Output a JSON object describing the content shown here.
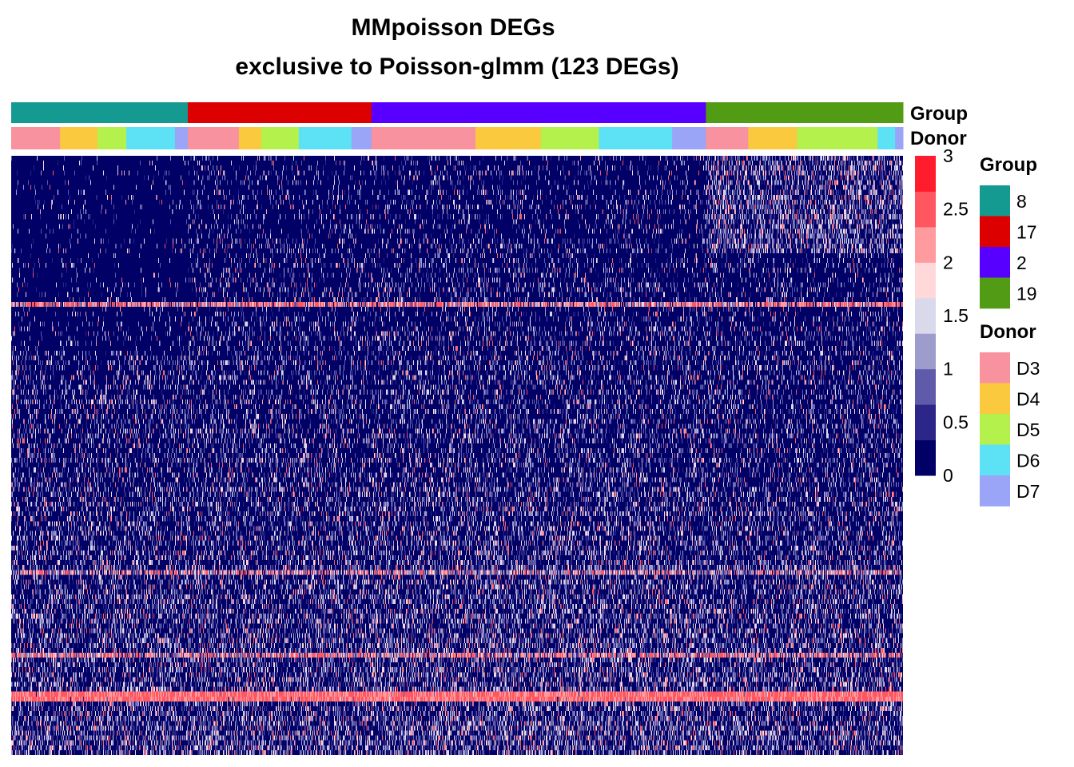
{
  "chart_data": {
    "type": "heatmap",
    "title": "MMpoisson DEGs",
    "subtitle": "exclusive to Poisson-glmm (123 DEGs)",
    "num_genes": 123,
    "annotation_labels": {
      "group": "Group",
      "donor": "Donor"
    },
    "groups": [
      {
        "name": "8",
        "color": "#159A91",
        "fraction": 0.198,
        "donors": [
          {
            "donor": "D3",
            "fraction": 0.277
          },
          {
            "donor": "D4",
            "fraction": 0.212
          },
          {
            "donor": "D5",
            "fraction": 0.163
          },
          {
            "donor": "D6",
            "fraction": 0.275
          },
          {
            "donor": "D7",
            "fraction": 0.073
          }
        ]
      },
      {
        "name": "17",
        "color": "#DD0000",
        "fraction": 0.206,
        "donors": [
          {
            "donor": "D3",
            "fraction": 0.278
          },
          {
            "donor": "D4",
            "fraction": 0.122
          },
          {
            "donor": "D5",
            "fraction": 0.204
          },
          {
            "donor": "D6",
            "fraction": 0.287
          },
          {
            "donor": "D7",
            "fraction": 0.109
          }
        ]
      },
      {
        "name": "2",
        "color": "#5700FF",
        "fraction": 0.375,
        "donors": [
          {
            "donor": "D3",
            "fraction": 0.311
          },
          {
            "donor": "D4",
            "fraction": 0.195
          },
          {
            "donor": "D5",
            "fraction": 0.174
          },
          {
            "donor": "D6",
            "fraction": 0.219
          },
          {
            "donor": "D7",
            "fraction": 0.101
          }
        ]
      },
      {
        "name": "19",
        "color": "#529B14",
        "fraction": 0.221,
        "donors": [
          {
            "donor": "D3",
            "fraction": 0.215
          },
          {
            "donor": "D4",
            "fraction": 0.247
          },
          {
            "donor": "D5",
            "fraction": 0.409
          },
          {
            "donor": "D6",
            "fraction": 0.089
          },
          {
            "donor": "D7",
            "fraction": 0.04
          }
        ]
      }
    ],
    "donor_colors": {
      "D3": "#F7929E",
      "D4": "#FBC93D",
      "D5": "#B5F14D",
      "D6": "#5DE2F5",
      "D7": "#9AA5F7"
    },
    "color_scale": {
      "min": 0,
      "max": 3,
      "ticks": [
        "3",
        "2.5",
        "2",
        "1.5",
        "1",
        "0.5",
        "0"
      ],
      "colors": [
        "#000066",
        "#2B2688",
        "#5F5BAA",
        "#9E9CCD",
        "#DAD9EC",
        "#FFD9D9",
        "#FF9A9E",
        "#FF5660",
        "#FF1C2D"
      ]
    },
    "legends": {
      "group": {
        "title": "Group",
        "items": [
          {
            "label": "8",
            "color": "#159A91"
          },
          {
            "label": "17",
            "color": "#DD0000"
          },
          {
            "label": "2",
            "color": "#5700FF"
          },
          {
            "label": "19",
            "color": "#529B14"
          }
        ]
      },
      "donor": {
        "title": "Donor",
        "items": [
          {
            "label": "D3",
            "color": "#F7929E"
          },
          {
            "label": "D4",
            "color": "#FBC93D"
          },
          {
            "label": "D5",
            "color": "#B5F14D"
          },
          {
            "label": "D6",
            "color": "#5DE2F5"
          },
          {
            "label": "D7",
            "color": "#9AA5F7"
          }
        ]
      }
    }
  }
}
